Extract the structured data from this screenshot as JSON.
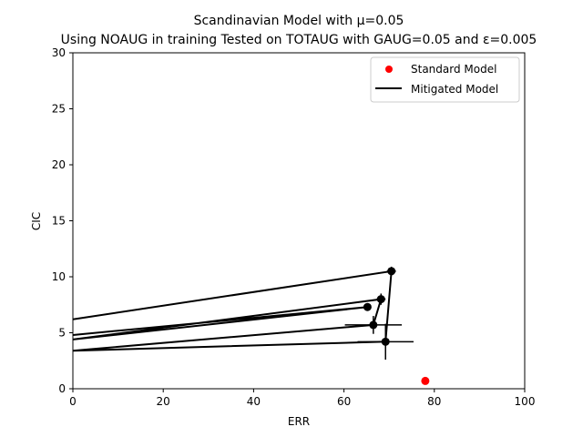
{
  "chart_data": {
    "type": "scatter",
    "title_line1": "Scandinavian Model with μ=0.05",
    "title_line2": "Using NOAUG in training Tested on TOTAUG with GAUG=0.05 and ε=0.005",
    "xlabel": "ERR",
    "ylabel": "CIC",
    "xlim": [
      0,
      100
    ],
    "ylim": [
      0,
      30
    ],
    "xticks": [
      0,
      20,
      40,
      60,
      80,
      100
    ],
    "yticks": [
      0,
      5,
      10,
      15,
      20,
      25,
      30
    ],
    "grid": false,
    "legend_position": "upper-right",
    "colors": {
      "standard": "#ff0000",
      "mitigated": "#000000"
    },
    "series": [
      {
        "name": "Standard Model",
        "kind": "points",
        "points": [
          {
            "x": 78.0,
            "y": 0.7
          }
        ]
      },
      {
        "name": "Mitigated Model",
        "kind": "points_with_errorbars",
        "points": [
          {
            "x": 70.5,
            "y": 10.5,
            "xerr": 1.0,
            "yerr": 0.4
          },
          {
            "x": 68.2,
            "y": 8.0,
            "xerr": 1.0,
            "yerr": 0.5
          },
          {
            "x": 65.2,
            "y": 7.3,
            "xerr": 0.3,
            "yerr": 0.2
          },
          {
            "x": 66.5,
            "y": 5.7,
            "xerr": 6.3,
            "yerr": 0.8
          },
          {
            "x": 69.2,
            "y": 4.2,
            "xerr": 6.2,
            "yerr": 1.6
          }
        ],
        "path": [
          {
            "x": 0,
            "y": 6.2
          },
          {
            "x": 70.5,
            "y": 10.5
          },
          {
            "x": 69.2,
            "y": 4.2
          },
          {
            "x": 0,
            "y": 3.4
          },
          {
            "x": 66.5,
            "y": 5.7
          },
          {
            "x": 68.2,
            "y": 8.0
          },
          {
            "x": 0,
            "y": 4.4
          },
          {
            "x": 65.2,
            "y": 7.3
          },
          {
            "x": 0,
            "y": 4.8
          }
        ]
      }
    ]
  }
}
